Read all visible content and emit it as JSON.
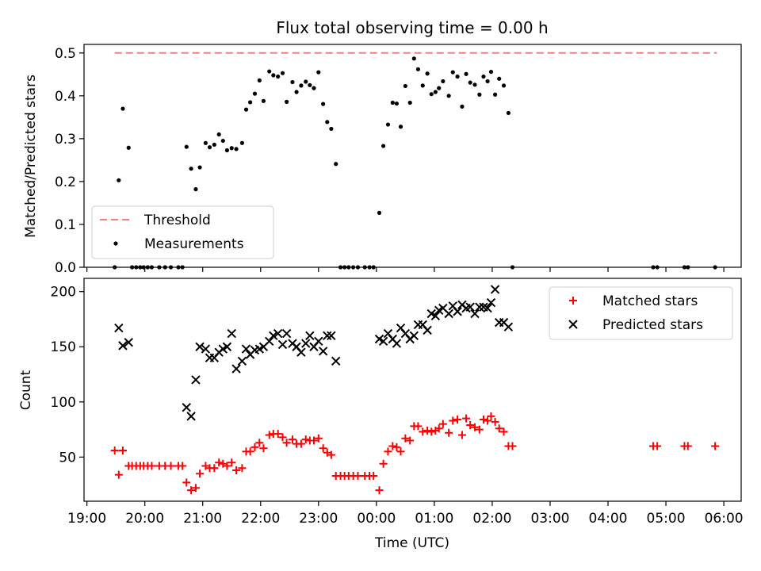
{
  "title": "Flux total observing time = 0.00 h",
  "xlabel": "Time (UTC)",
  "xtick_labels": [
    "19:00",
    "20:00",
    "21:00",
    "22:00",
    "23:00",
    "00:00",
    "01:00",
    "02:00",
    "03:00",
    "04:00",
    "05:00",
    "06:00"
  ],
  "colors": {
    "threshold": "#f08080",
    "measurements": "#000000",
    "matched": "#ff0000",
    "predicted": "#000000"
  },
  "chart_data": [
    {
      "type": "scatter",
      "panel": "top",
      "title": "Flux total observing time = 0.00 h",
      "xlabel": "",
      "ylabel": "Matched/Predicted stars",
      "x_units": "hours since 19:00 UTC",
      "xlim": [
        -0.05,
        11.3
      ],
      "ylim": [
        0,
        0.52
      ],
      "yticks": [
        0.0,
        0.1,
        0.2,
        0.3,
        0.4,
        0.5
      ],
      "ytick_labels": [
        "0.0",
        "0.1",
        "0.2",
        "0.3",
        "0.4",
        "0.5"
      ],
      "legend_position": "lower-left",
      "series": [
        {
          "name": "Threshold",
          "kind": "dashed-line",
          "x": [
            0.48,
            10.88
          ],
          "y": [
            0.5,
            0.5
          ]
        },
        {
          "name": "Measurements",
          "kind": "points",
          "points": [
            [
              0.48,
              0
            ],
            [
              0.55,
              0.203
            ],
            [
              0.62,
              0.37
            ],
            [
              0.72,
              0.279
            ],
            [
              0.78,
              0
            ],
            [
              0.85,
              0
            ],
            [
              0.92,
              0
            ],
            [
              0.98,
              0
            ],
            [
              1.05,
              0
            ],
            [
              1.12,
              0
            ],
            [
              1.25,
              0
            ],
            [
              1.35,
              0
            ],
            [
              1.45,
              0
            ],
            [
              1.58,
              0
            ],
            [
              1.65,
              0
            ],
            [
              1.72,
              0.281
            ],
            [
              1.8,
              0.23
            ],
            [
              1.88,
              0.182
            ],
            [
              1.95,
              0.233
            ],
            [
              2.05,
              0.29
            ],
            [
              2.12,
              0.28
            ],
            [
              2.2,
              0.286
            ],
            [
              2.28,
              0.31
            ],
            [
              2.35,
              0.295
            ],
            [
              2.42,
              0.273
            ],
            [
              2.5,
              0.278
            ],
            [
              2.58,
              0.276
            ],
            [
              2.68,
              0.29
            ],
            [
              2.75,
              0.368
            ],
            [
              2.82,
              0.385
            ],
            [
              2.9,
              0.405
            ],
            [
              2.98,
              0.436
            ],
            [
              3.05,
              0.388
            ],
            [
              3.15,
              0.457
            ],
            [
              3.22,
              0.448
            ],
            [
              3.3,
              0.445
            ],
            [
              3.38,
              0.453
            ],
            [
              3.45,
              0.386
            ],
            [
              3.55,
              0.432
            ],
            [
              3.62,
              0.409
            ],
            [
              3.7,
              0.424
            ],
            [
              3.78,
              0.433
            ],
            [
              3.85,
              0.425
            ],
            [
              3.92,
              0.418
            ],
            [
              4.0,
              0.455
            ],
            [
              4.08,
              0.381
            ],
            [
              4.15,
              0.339
            ],
            [
              4.22,
              0.323
            ],
            [
              4.3,
              0.241
            ],
            [
              4.38,
              0
            ],
            [
              4.45,
              0
            ],
            [
              4.52,
              0
            ],
            [
              4.6,
              0
            ],
            [
              4.68,
              0
            ],
            [
              4.8,
              0
            ],
            [
              4.88,
              0
            ],
            [
              4.95,
              0
            ],
            [
              5.05,
              0.127
            ],
            [
              5.12,
              0.283
            ],
            [
              5.2,
              0.333
            ],
            [
              5.28,
              0.384
            ],
            [
              5.35,
              0.382
            ],
            [
              5.42,
              0.328
            ],
            [
              5.5,
              0.423
            ],
            [
              5.58,
              0.384
            ],
            [
              5.65,
              0.487
            ],
            [
              5.72,
              0.462
            ],
            [
              5.8,
              0.424
            ],
            [
              5.88,
              0.452
            ],
            [
              5.95,
              0.404
            ],
            [
              6.02,
              0.409
            ],
            [
              6.08,
              0.418
            ],
            [
              6.15,
              0.434
            ],
            [
              6.25,
              0.4
            ],
            [
              6.32,
              0.455
            ],
            [
              6.4,
              0.445
            ],
            [
              6.48,
              0.375
            ],
            [
              6.55,
              0.451
            ],
            [
              6.62,
              0.431
            ],
            [
              6.7,
              0.426
            ],
            [
              6.78,
              0.403
            ],
            [
              6.85,
              0.445
            ],
            [
              6.92,
              0.434
            ],
            [
              6.98,
              0.456
            ],
            [
              7.05,
              0.403
            ],
            [
              7.12,
              0.44
            ],
            [
              7.2,
              0.424
            ],
            [
              7.28,
              0.36
            ],
            [
              7.35,
              0
            ],
            [
              9.78,
              0
            ],
            [
              9.85,
              0
            ],
            [
              10.32,
              0
            ],
            [
              10.38,
              0
            ],
            [
              10.85,
              0
            ]
          ]
        }
      ]
    },
    {
      "type": "scatter",
      "panel": "bottom",
      "xlabel": "Time (UTC)",
      "ylabel": "Count",
      "x_units": "hours since 19:00 UTC",
      "xlim": [
        -0.05,
        11.3
      ],
      "ylim": [
        10,
        212
      ],
      "yticks": [
        50,
        100,
        150,
        200
      ],
      "ytick_labels": [
        "50",
        "100",
        "150",
        "200"
      ],
      "legend_position": "upper-right",
      "series": [
        {
          "name": "Matched stars",
          "marker": "plus",
          "points": [
            [
              0.48,
              56
            ],
            [
              0.55,
              34
            ],
            [
              0.62,
              56
            ],
            [
              0.72,
              42
            ],
            [
              0.78,
              42
            ],
            [
              0.85,
              42
            ],
            [
              0.92,
              42
            ],
            [
              0.98,
              42
            ],
            [
              1.05,
              42
            ],
            [
              1.12,
              42
            ],
            [
              1.25,
              42
            ],
            [
              1.35,
              42
            ],
            [
              1.45,
              42
            ],
            [
              1.58,
              42
            ],
            [
              1.65,
              42
            ],
            [
              1.72,
              27
            ],
            [
              1.8,
              20
            ],
            [
              1.88,
              22
            ],
            [
              1.95,
              35
            ],
            [
              2.05,
              42
            ],
            [
              2.12,
              40
            ],
            [
              2.2,
              40
            ],
            [
              2.28,
              45
            ],
            [
              2.35,
              44
            ],
            [
              2.42,
              42
            ],
            [
              2.5,
              45
            ],
            [
              2.58,
              38
            ],
            [
              2.68,
              40
            ],
            [
              2.75,
              55
            ],
            [
              2.82,
              55
            ],
            [
              2.9,
              59
            ],
            [
              2.98,
              63
            ],
            [
              3.05,
              58
            ],
            [
              3.15,
              70
            ],
            [
              3.22,
              71
            ],
            [
              3.3,
              71
            ],
            [
              3.38,
              68
            ],
            [
              3.45,
              63
            ],
            [
              3.55,
              66
            ],
            [
              3.62,
              62
            ],
            [
              3.7,
              62
            ],
            [
              3.78,
              66
            ],
            [
              3.85,
              65
            ],
            [
              3.92,
              65
            ],
            [
              4.0,
              67
            ],
            [
              4.08,
              58
            ],
            [
              4.15,
              54
            ],
            [
              4.22,
              52
            ],
            [
              4.3,
              33
            ],
            [
              4.38,
              33
            ],
            [
              4.45,
              33
            ],
            [
              4.52,
              33
            ],
            [
              4.6,
              33
            ],
            [
              4.68,
              33
            ],
            [
              4.8,
              33
            ],
            [
              4.88,
              33
            ],
            [
              4.95,
              33
            ],
            [
              5.05,
              20
            ],
            [
              5.12,
              44
            ],
            [
              5.2,
              55
            ],
            [
              5.28,
              60
            ],
            [
              5.35,
              59
            ],
            [
              5.42,
              55
            ],
            [
              5.5,
              67
            ],
            [
              5.58,
              65
            ],
            [
              5.65,
              78
            ],
            [
              5.72,
              78
            ],
            [
              5.8,
              73
            ],
            [
              5.88,
              74
            ],
            [
              5.95,
              73
            ],
            [
              6.02,
              74
            ],
            [
              6.08,
              76
            ],
            [
              6.15,
              80
            ],
            [
              6.25,
              72
            ],
            [
              6.32,
              83
            ],
            [
              6.4,
              84
            ],
            [
              6.48,
              70
            ],
            [
              6.55,
              85
            ],
            [
              6.62,
              79
            ],
            [
              6.7,
              77
            ],
            [
              6.78,
              75
            ],
            [
              6.85,
              84
            ],
            [
              6.92,
              83
            ],
            [
              6.98,
              87
            ],
            [
              7.05,
              82
            ],
            [
              7.12,
              76
            ],
            [
              7.2,
              73
            ],
            [
              7.28,
              60
            ],
            [
              7.35,
              60
            ],
            [
              9.78,
              60
            ],
            [
              9.85,
              60
            ],
            [
              10.32,
              60
            ],
            [
              10.38,
              60
            ],
            [
              10.85,
              60
            ]
          ]
        },
        {
          "name": "Predicted stars",
          "marker": "x",
          "points": [
            [
              0.55,
              167
            ],
            [
              0.62,
              151
            ],
            [
              0.72,
              154
            ],
            [
              1.72,
              95
            ],
            [
              1.8,
              87
            ],
            [
              1.88,
              120
            ],
            [
              1.95,
              150
            ],
            [
              2.05,
              148
            ],
            [
              2.12,
              140
            ],
            [
              2.2,
              140
            ],
            [
              2.28,
              145
            ],
            [
              2.35,
              148
            ],
            [
              2.42,
              150
            ],
            [
              2.5,
              162
            ],
            [
              2.58,
              130
            ],
            [
              2.68,
              137
            ],
            [
              2.75,
              148
            ],
            [
              2.82,
              143
            ],
            [
              2.9,
              147
            ],
            [
              2.98,
              148
            ],
            [
              3.05,
              150
            ],
            [
              3.15,
              155
            ],
            [
              3.22,
              160
            ],
            [
              3.3,
              162
            ],
            [
              3.38,
              152
            ],
            [
              3.45,
              162
            ],
            [
              3.55,
              153
            ],
            [
              3.62,
              150
            ],
            [
              3.7,
              145
            ],
            [
              3.78,
              153
            ],
            [
              3.85,
              160
            ],
            [
              3.92,
              150
            ],
            [
              4.0,
              155
            ],
            [
              4.08,
              146
            ],
            [
              4.15,
              160
            ],
            [
              4.22,
              160
            ],
            [
              4.3,
              137
            ],
            [
              5.05,
              157
            ],
            [
              5.12,
              155
            ],
            [
              5.2,
              162
            ],
            [
              5.28,
              157
            ],
            [
              5.35,
              153
            ],
            [
              5.42,
              167
            ],
            [
              5.5,
              162
            ],
            [
              5.58,
              157
            ],
            [
              5.65,
              160
            ],
            [
              5.72,
              170
            ],
            [
              5.8,
              170
            ],
            [
              5.88,
              165
            ],
            [
              5.95,
              180
            ],
            [
              6.02,
              178
            ],
            [
              6.08,
              183
            ],
            [
              6.15,
              185
            ],
            [
              6.25,
              180
            ],
            [
              6.32,
              187
            ],
            [
              6.4,
              182
            ],
            [
              6.48,
              188
            ],
            [
              6.55,
              185
            ],
            [
              6.62,
              186
            ],
            [
              6.7,
              180
            ],
            [
              6.78,
              186
            ],
            [
              6.85,
              186
            ],
            [
              6.92,
              185
            ],
            [
              6.98,
              190
            ],
            [
              7.05,
              202
            ],
            [
              7.12,
              172
            ],
            [
              7.2,
              172
            ],
            [
              7.28,
              168
            ]
          ]
        }
      ]
    }
  ]
}
